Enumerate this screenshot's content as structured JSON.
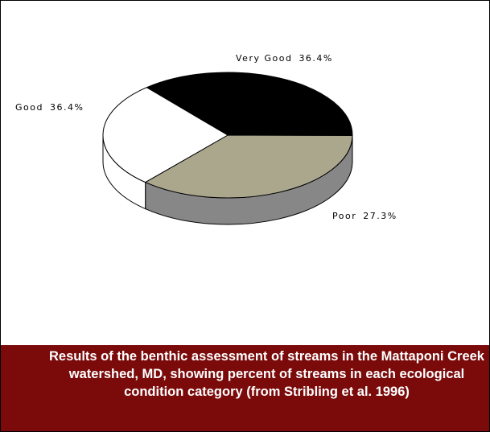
{
  "chart_data": {
    "type": "pie",
    "title": "Results of the benthic assessment of streams in the Mattaponi Creek watershed, MD, showing percent of streams in each ecological condition category (from Stribling et al. 1996)",
    "categories": [
      "Very Good",
      "Good",
      "Poor"
    ],
    "values": [
      36.4,
      36.4,
      27.3
    ],
    "value_labels": [
      "36.4%",
      "36.4%",
      "27.3%"
    ],
    "colors": [
      "#000000",
      "#aaa78d",
      "#ffffff"
    ]
  }
}
